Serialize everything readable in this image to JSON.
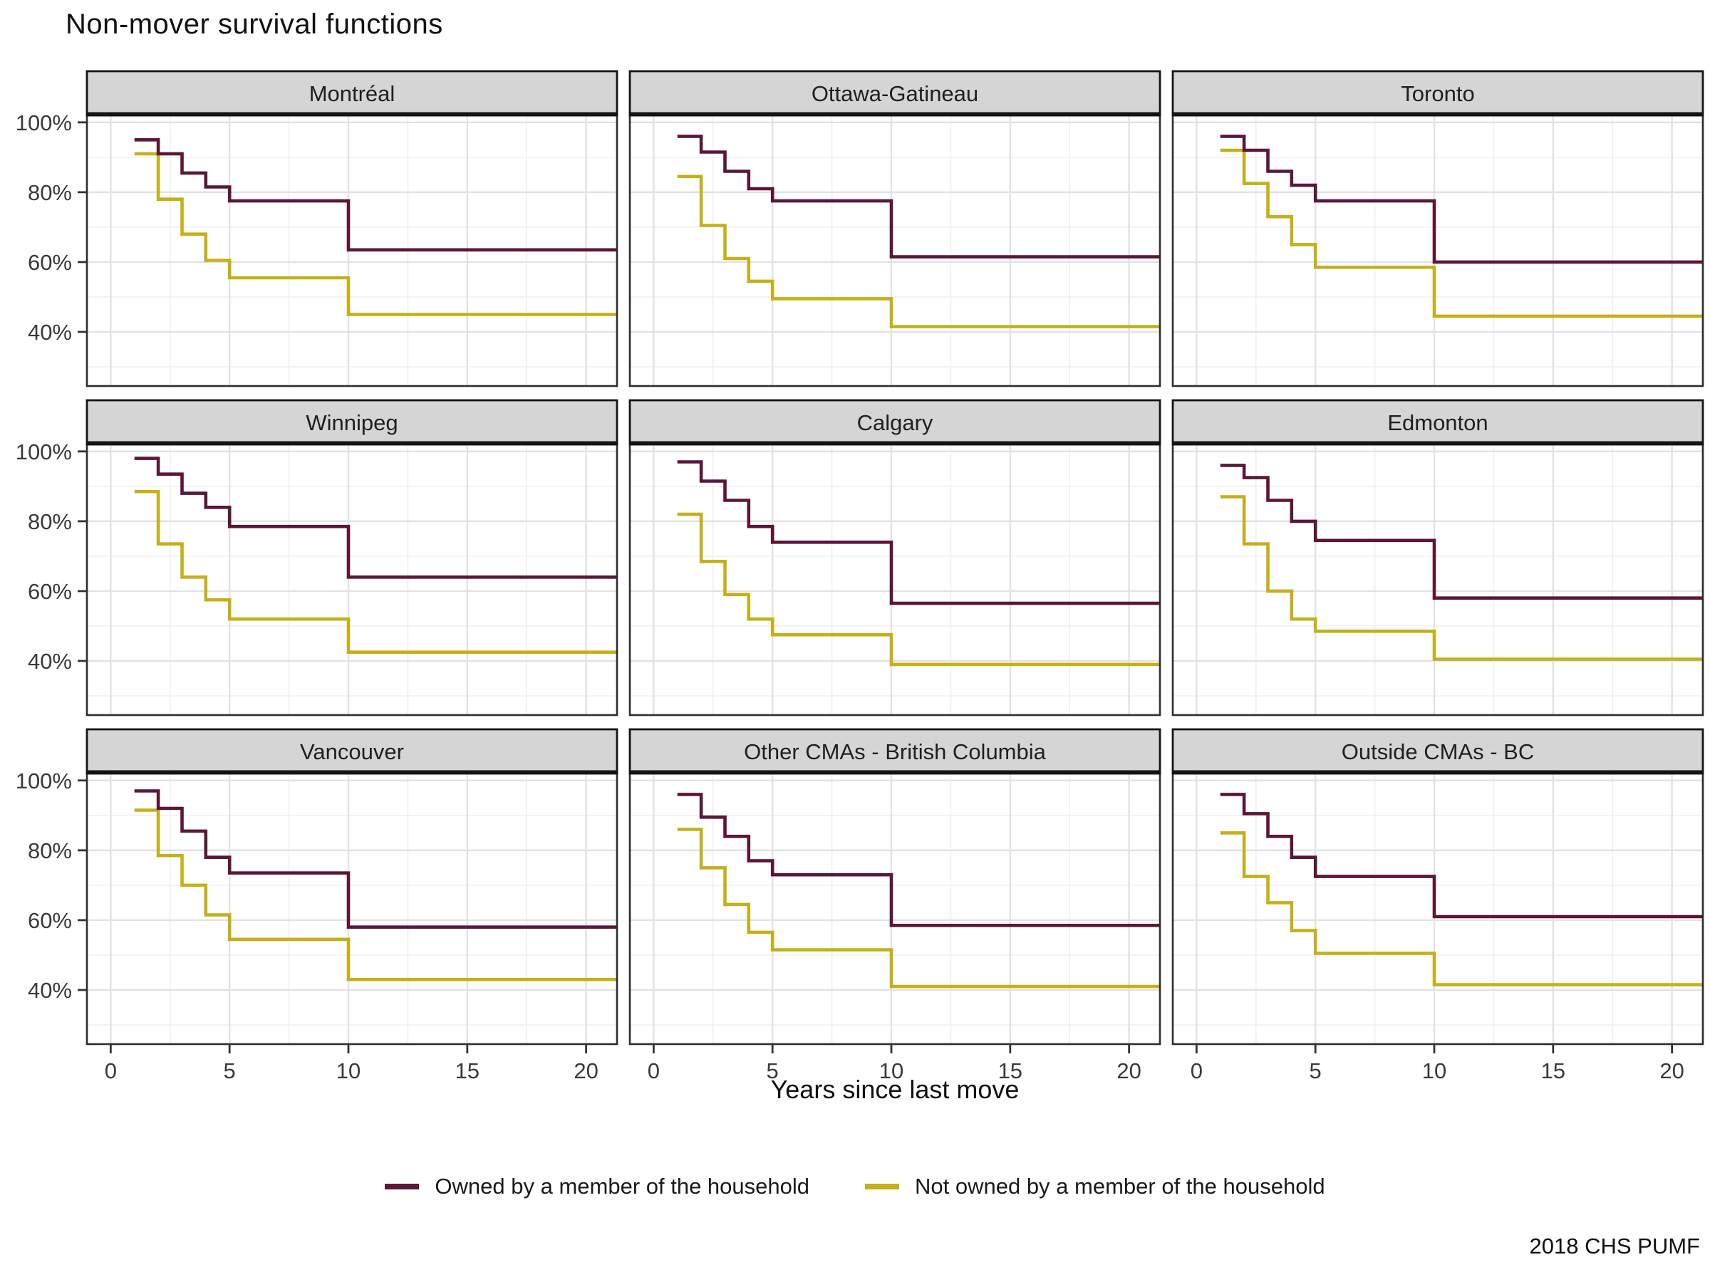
{
  "title": "Non-mover survival functions",
  "caption": "2018 CHS PUMF",
  "legend": {
    "items": [
      {
        "name": "owned",
        "label": "Owned by a member of the household",
        "color": "#5b1638"
      },
      {
        "name": "not_owned",
        "label": "Not owned by a member of the household",
        "color": "#c5b01a"
      }
    ]
  },
  "chart_data": {
    "type": "line",
    "subtype": "step-survival-curves",
    "title": "Non-mover survival functions",
    "xlabel": "Years since last move",
    "ylabel": "",
    "x_ticks": [
      0,
      5,
      10,
      15,
      20
    ],
    "x_minor": [
      2.5,
      7.5,
      12.5,
      17.5
    ],
    "xlim": [
      -1,
      21.3
    ],
    "y_ticks": [
      100,
      80,
      60,
      40
    ],
    "y_tick_labels": [
      "100%",
      "80%",
      "60%",
      "40%"
    ],
    "y_minor": [
      90,
      70,
      50,
      30
    ],
    "ylim": [
      24.5,
      102
    ],
    "legend_position": "bottom",
    "grid": true,
    "step_x": [
      1,
      2,
      3,
      4,
      5,
      10
    ],
    "x_end": 21.3,
    "series_names": [
      "Owned by a member of the household",
      "Not owned by a member of the household"
    ],
    "facets": [
      {
        "label": "Montréal",
        "owned": [
          95,
          91,
          85.5,
          81.5,
          77.5,
          63.5
        ],
        "not_owned": [
          91,
          78,
          68,
          60.5,
          55.5,
          45
        ]
      },
      {
        "label": "Ottawa-Gatineau",
        "owned": [
          96,
          91.5,
          86,
          81,
          77.5,
          61.5
        ],
        "not_owned": [
          84.5,
          70.5,
          61,
          54.5,
          49.5,
          41.5
        ]
      },
      {
        "label": "Toronto",
        "owned": [
          96,
          92,
          86,
          82,
          77.5,
          60
        ],
        "not_owned": [
          92,
          82.5,
          73,
          65,
          58.5,
          44.5
        ]
      },
      {
        "label": "Winnipeg",
        "owned": [
          98,
          93.5,
          88,
          84,
          78.5,
          64
        ],
        "not_owned": [
          88.5,
          73.5,
          64,
          57.5,
          52,
          42.5
        ]
      },
      {
        "label": "Calgary",
        "owned": [
          97,
          91.5,
          86,
          78.5,
          74,
          56.5
        ],
        "not_owned": [
          82,
          68.5,
          59,
          52,
          47.5,
          39
        ]
      },
      {
        "label": "Edmonton",
        "owned": [
          96,
          92.5,
          86,
          80,
          74.5,
          58
        ],
        "not_owned": [
          87,
          73.5,
          60,
          52,
          48.5,
          40.5
        ]
      },
      {
        "label": "Vancouver",
        "owned": [
          97,
          92,
          85.5,
          78,
          73.5,
          58
        ],
        "not_owned": [
          91.5,
          78.5,
          70,
          61.5,
          54.5,
          43
        ]
      },
      {
        "label": "Other CMAs - British Columbia",
        "owned": [
          96,
          89.5,
          84,
          77,
          73,
          58.5
        ],
        "not_owned": [
          86,
          75,
          64.5,
          56.5,
          51.5,
          41
        ]
      },
      {
        "label": "Outside CMAs - BC",
        "owned": [
          96,
          90.5,
          84,
          78,
          72.5,
          61
        ],
        "not_owned": [
          85,
          72.5,
          65,
          57,
          50.5,
          41.5
        ]
      }
    ],
    "colors": {
      "owned": "#5b1638",
      "not_owned": "#c5b01a",
      "grid_major": "#e2e2e2",
      "grid_minor": "#f0f0f0",
      "panel_border": "#2d2d2d",
      "strip_fill": "#d5d5d5",
      "strip_border": "#141414",
      "tick": "#333333",
      "tick_text": "#3a3a3a",
      "strip_text": "#1f1f1f"
    }
  }
}
